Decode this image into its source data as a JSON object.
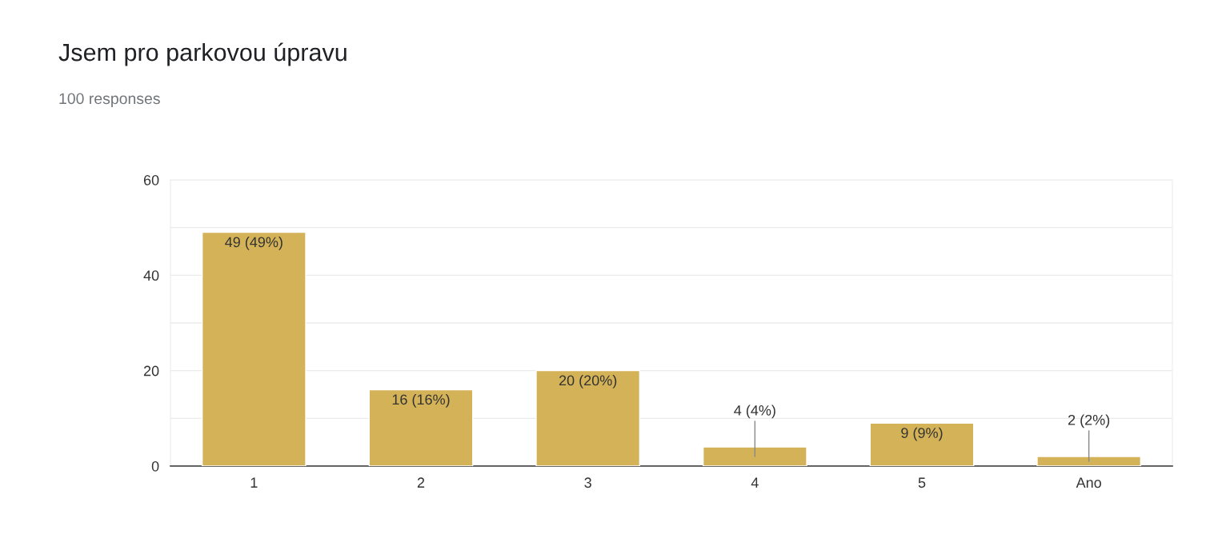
{
  "chart_data": {
    "type": "bar",
    "title": "Jsem pro parkovou úpravu",
    "subtitle": "100 responses",
    "categories": [
      "1",
      "2",
      "3",
      "4",
      "5",
      "Ano"
    ],
    "values": [
      49,
      16,
      20,
      4,
      9,
      2
    ],
    "value_labels": [
      "49 (49%)",
      "16 (16%)",
      "20 (20%)",
      "4 (4%)",
      "9 (9%)",
      "2 (2%)"
    ],
    "color": "#d4b257",
    "ylim": [
      0,
      60
    ],
    "yticks": [
      0,
      {
        "value": 10,
        "label": null
      },
      20,
      {
        "value": 30,
        "label": null
      },
      40,
      {
        "value": 50,
        "label": null
      },
      60
    ],
    "grid": "y"
  }
}
